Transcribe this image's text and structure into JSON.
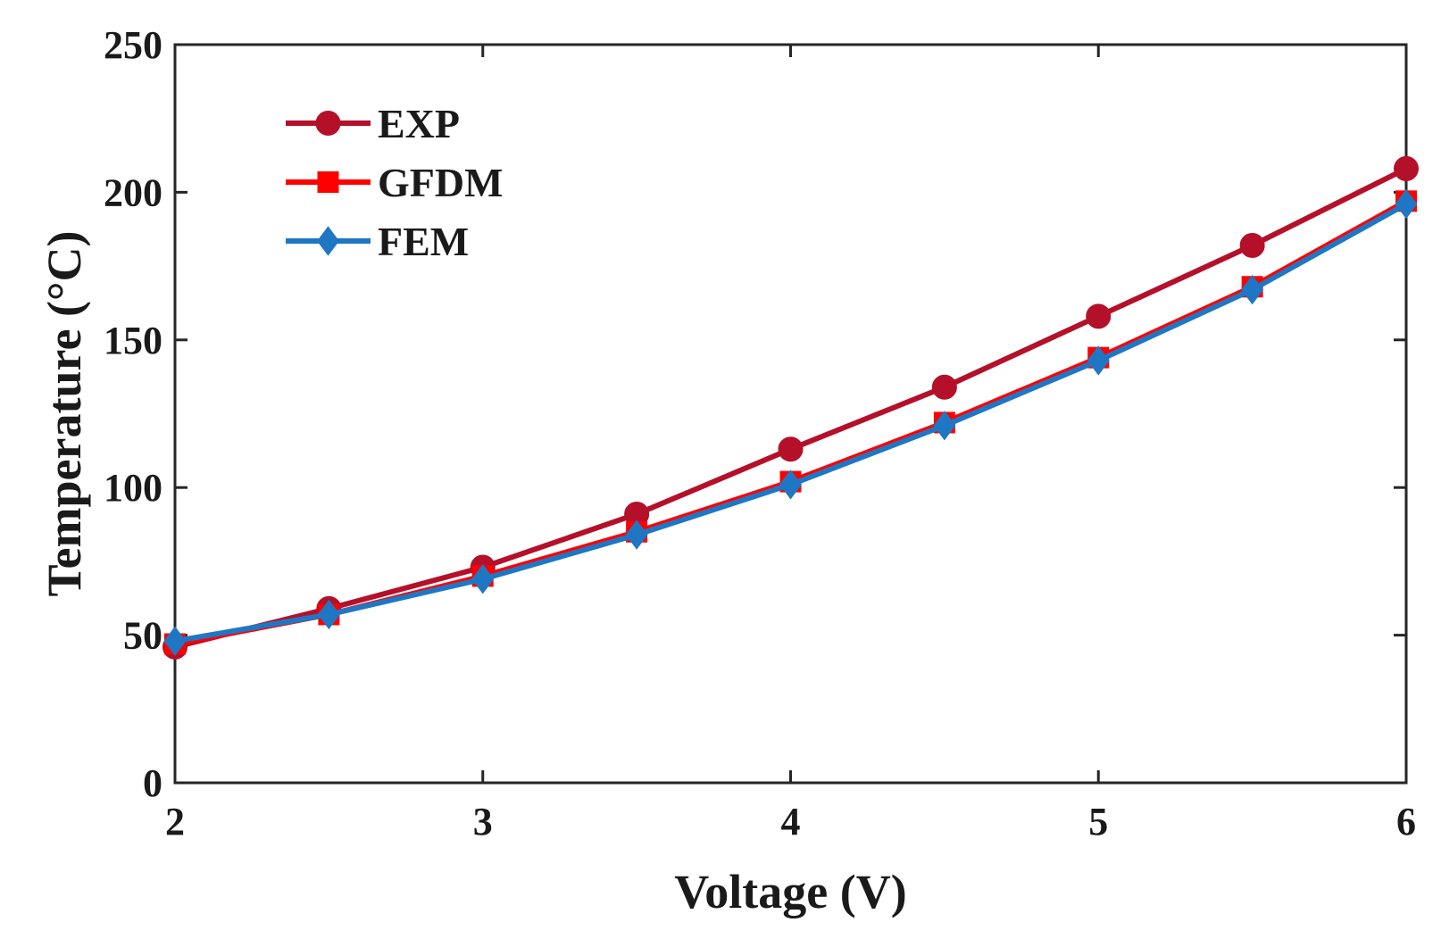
{
  "chart_data": {
    "type": "line",
    "title": "",
    "xlabel": "Voltage (V)",
    "ylabel": "Temperature (°C)",
    "xlim": [
      2,
      6
    ],
    "ylim": [
      0,
      250
    ],
    "xticks": [
      2,
      3,
      4,
      5,
      6
    ],
    "xtick_labels": [
      "2",
      "3",
      "4",
      "5",
      "6"
    ],
    "yticks": [
      0,
      50,
      100,
      150,
      200,
      250
    ],
    "ytick_labels": [
      "0",
      "50",
      "100",
      "150",
      "200",
      "250"
    ],
    "grid": false,
    "legend_position": "top-left",
    "x": [
      2,
      2.5,
      3,
      3.5,
      4,
      4.5,
      5,
      5.5,
      6
    ],
    "series": [
      {
        "name": "EXP",
        "marker": "circle",
        "color": "#b5102a",
        "markerFill": "#b5102a",
        "values": [
          46,
          59,
          73,
          91,
          113,
          134,
          158,
          182,
          208
        ]
      },
      {
        "name": "GFDM",
        "marker": "square",
        "color": "#ff0000",
        "markerFill": "#ff0000",
        "values": [
          47,
          57,
          70,
          85,
          102,
          122,
          144,
          168,
          197
        ]
      },
      {
        "name": "FEM",
        "marker": "diamond",
        "color": "#1f77c4",
        "markerFill": "#1f77c4",
        "values": [
          48,
          57,
          69,
          84,
          101,
          121,
          143,
          167,
          196
        ]
      }
    ]
  }
}
